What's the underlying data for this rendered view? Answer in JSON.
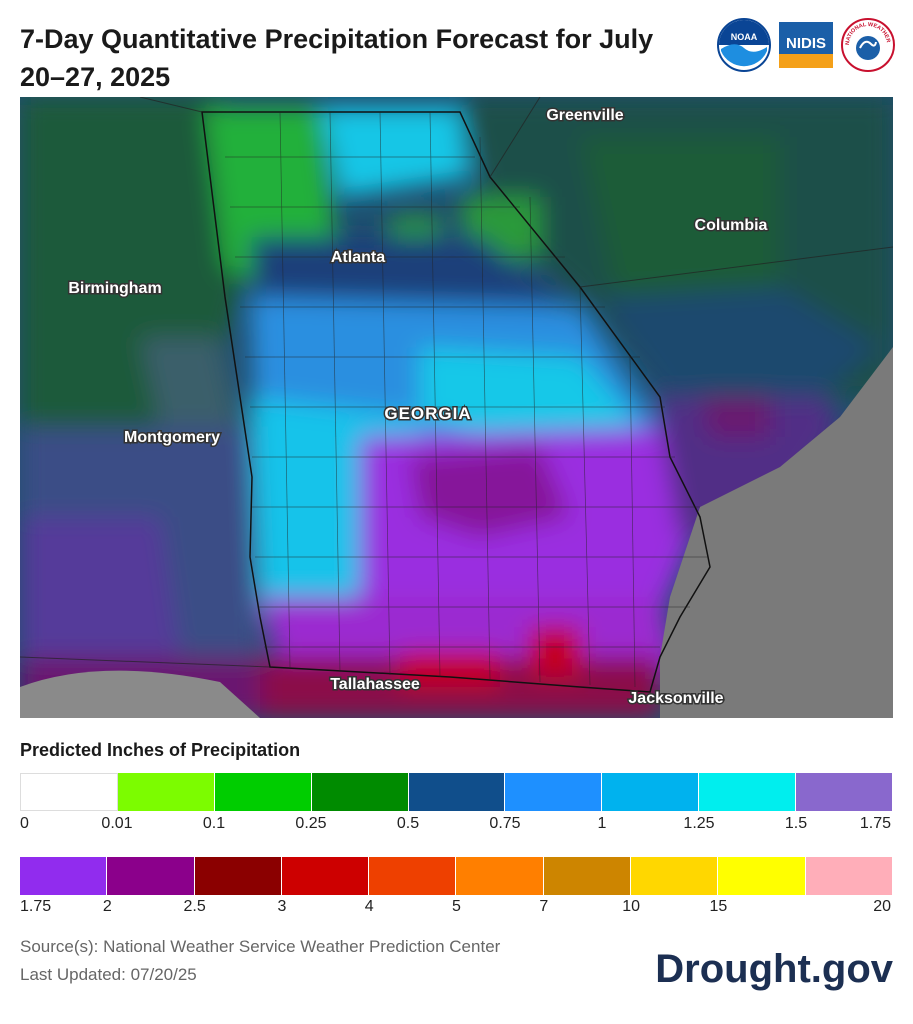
{
  "title": "7-Day Quantitative Precipitation Forecast for July 20–27, 2025",
  "logos": [
    "noaa-logo",
    "nidis-logo",
    "nws-logo"
  ],
  "logo_text": {
    "noaa": "NOAA",
    "nidis": "NIDIS",
    "nws": "NATIONAL WEATHER SERVICE"
  },
  "map": {
    "state_label": "GEORGIA",
    "cities": [
      "Greenville",
      "Columbia",
      "Atlanta",
      "Birmingham",
      "Montgomery",
      "Tallahassee",
      "Jacksonville"
    ]
  },
  "legend": {
    "title": "Predicted Inches of Precipitation",
    "row1": {
      "colors": [
        "#ffffff",
        "#7cfc00",
        "#00cd00",
        "#008b00",
        "#104e8b",
        "#1e90ff",
        "#00b2ee",
        "#00eeee",
        "#8968cd"
      ],
      "ticks": [
        "0",
        "0.01",
        "0.1",
        "0.25",
        "0.5",
        "0.75",
        "1",
        "1.25",
        "1.5",
        "1.75"
      ]
    },
    "row2": {
      "colors": [
        "#912cee",
        "#8b008b",
        "#8b0000",
        "#cd0000",
        "#ee4000",
        "#ff7f00",
        "#cd8500",
        "#ffd700",
        "#ffff00",
        "#ffaeb9"
      ],
      "ticks": [
        "1.75",
        "2",
        "2.5",
        "3",
        "4",
        "5",
        "7",
        "10",
        "15",
        "20"
      ]
    }
  },
  "source": "Source(s): National Weather Service Weather Prediction Center",
  "updated": "Last Updated: 07/20/25",
  "brand": "Drought.gov"
}
